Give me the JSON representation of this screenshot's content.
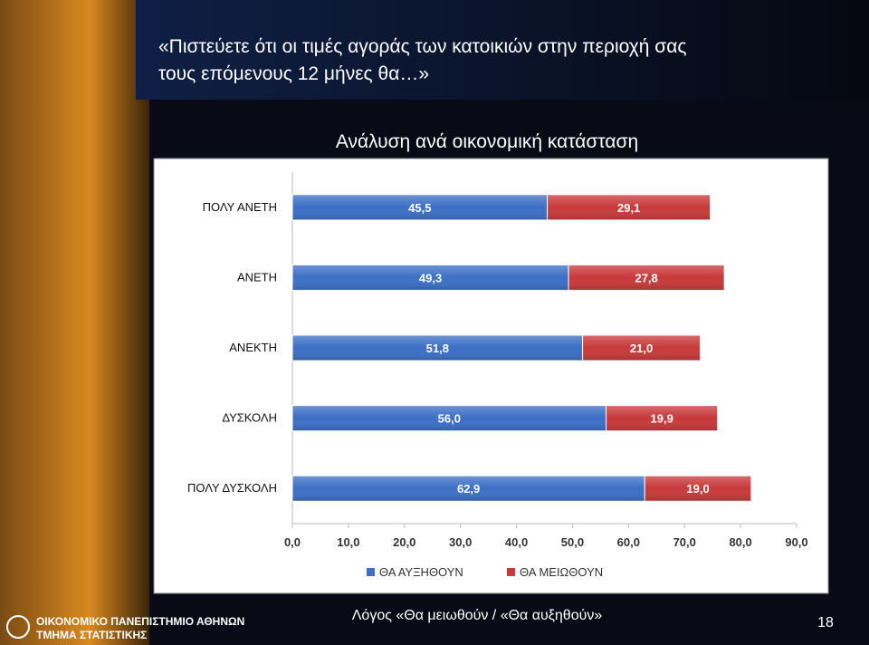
{
  "slide": {
    "title_lines": [
      "«Πιστεύετε ότι οι τιμές αγοράς των κατοικιών στην περιοχή σας",
      "τους επόμενους 12 μήνες θα…»"
    ],
    "caption": "Λόγος «Θα μειωθούν / «Θα αυξηθούν»",
    "page_number": "18",
    "institution": [
      "ΟΙΚΟΝΟΜΙΚΟ ΠΑΝΕΠΙΣΤΗΜΙΟ ΑΘΗΝΩΝ",
      "ΤΜΗΜΑ ΣΤΑΤΙΣΤΙΚΗΣ"
    ]
  },
  "chart_data": {
    "type": "stacked-barh",
    "title": "Ανάλυση ανά οικονομική κατάσταση",
    "categories": [
      "ΠΟΛΥ ΑΝΕΤΗ",
      "ΑΝΕΤΗ",
      "ΑΝΕΚΤΗ",
      "ΔΥΣΚΟΛΗ",
      "ΠΟΛΥ ΔΥΣΚΟΛΗ"
    ],
    "series": [
      {
        "name": "ΘΑ ΑΥΞΗΘΟΥΝ",
        "color": "#3b6fc6",
        "values": [
          45.5,
          49.3,
          51.8,
          56.0,
          62.9
        ],
        "value_labels": [
          "45,5",
          "49,3",
          "51,8",
          "56,0",
          "62,9"
        ]
      },
      {
        "name": "ΘΑ ΜΕΙΩΘΟΥΝ",
        "color": "#c8393a",
        "values": [
          29.1,
          27.8,
          21.0,
          19.9,
          19.0
        ],
        "value_labels": [
          "29,1",
          "27,8",
          "21,0",
          "19,9",
          "19,0"
        ]
      }
    ],
    "xlim": [
      0,
      90
    ],
    "xticks": [
      {
        "value": 0,
        "label": "0,0"
      },
      {
        "value": 10,
        "label": "10,0"
      },
      {
        "value": 20,
        "label": "20,0"
      },
      {
        "value": 30,
        "label": "30,0"
      },
      {
        "value": 40,
        "label": "40,0"
      },
      {
        "value": 50,
        "label": "50,0"
      },
      {
        "value": 60,
        "label": "60,0"
      },
      {
        "value": 70,
        "label": "70,0"
      },
      {
        "value": 80,
        "label": "80,0"
      },
      {
        "value": 90,
        "label": "90,0"
      }
    ],
    "legend": "bottom",
    "grid": false
  }
}
